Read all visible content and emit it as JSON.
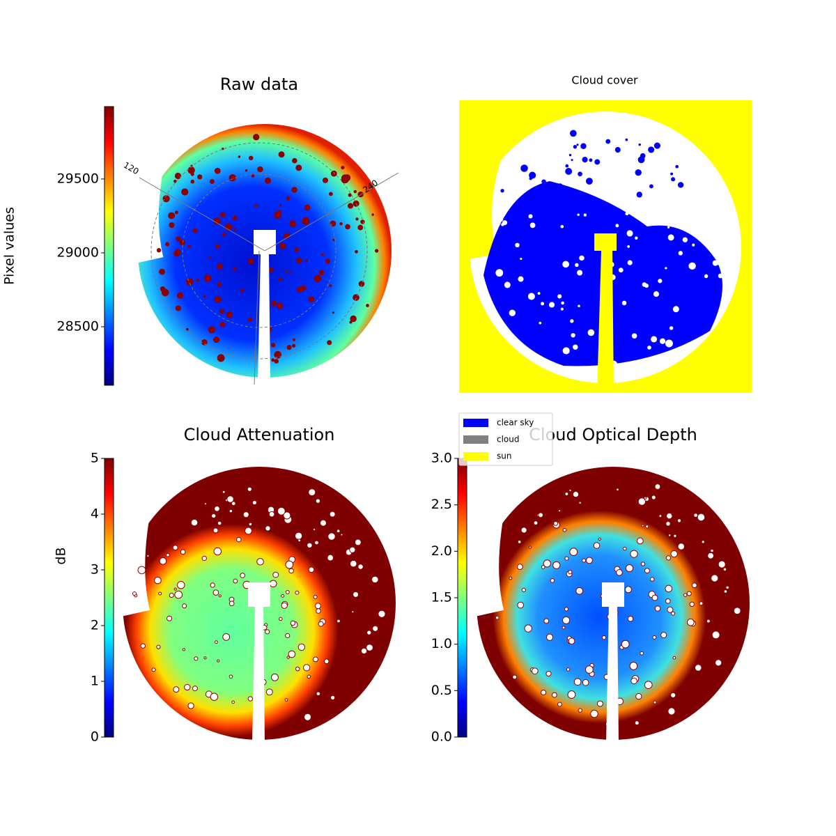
{
  "chart_data": [
    {
      "type": "image",
      "title": "Raw data",
      "annotations": [
        "120",
        "240"
      ],
      "colorbar": {
        "label": "Pixel values",
        "colormap": "jet",
        "lim": [
          28104,
          29990
        ],
        "ticks": [
          28500,
          29000,
          29500
        ]
      }
    },
    {
      "type": "classification",
      "title": "Cloud cover",
      "legend": [
        {
          "name": "clear sky",
          "color": "#0000ff"
        },
        {
          "name": "cloud",
          "color": "#808080"
        },
        {
          "name": "sun",
          "color": "#ffff00"
        }
      ]
    },
    {
      "type": "image",
      "title": "Cloud Attenuation",
      "colorbar": {
        "label": "dB",
        "colormap": "jet",
        "lim": [
          0,
          5
        ],
        "ticks": [
          0,
          1,
          2,
          3,
          4,
          5
        ]
      }
    },
    {
      "type": "image",
      "title": "Cloud Optical Depth",
      "colorbar": {
        "colormap": "jet",
        "lim": [
          0,
          3
        ],
        "ticks": [
          {
            "value": 0,
            "label": "0.0"
          },
          0.5,
          {
            "value": 1,
            "label": "1.0"
          },
          1.5,
          {
            "value": 2,
            "label": "2.0"
          },
          2.5,
          {
            "value": 3,
            "label": "3.0"
          }
        ]
      }
    }
  ]
}
